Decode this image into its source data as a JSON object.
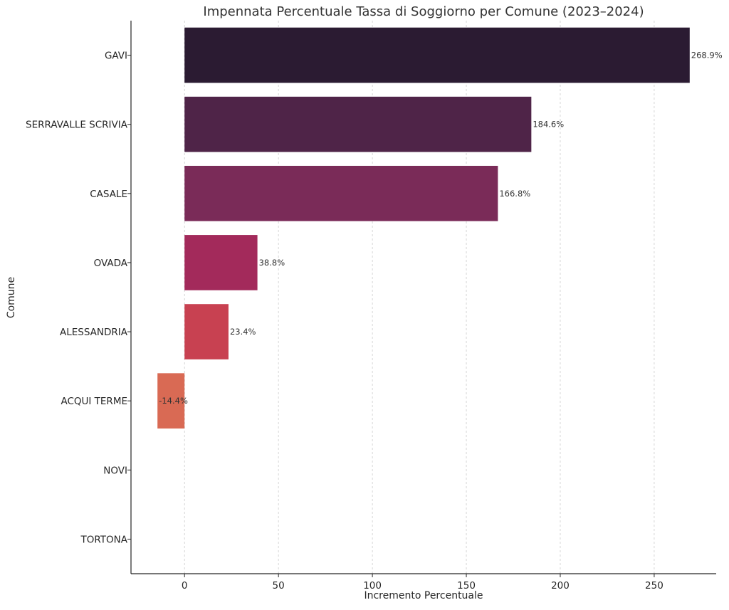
{
  "chart_data": {
    "type": "bar",
    "orientation": "horizontal",
    "title": "Impennata Percentuale Tassa di Soggiorno per Comune (2023–2024)",
    "xlabel": "Incremento Percentuale",
    "ylabel": "Comune",
    "categories": [
      "GAVI",
      "SERRAVALLE SCRIVIA",
      "CASALE",
      "OVADA",
      "ALESSANDRIA",
      "ACQUI TERME",
      "NOVI",
      "TORTONA"
    ],
    "values": [
      268.9,
      184.6,
      166.8,
      38.8,
      23.4,
      -14.4,
      null,
      null
    ],
    "data_labels": [
      "268.9%",
      "184.6%",
      "166.8%",
      "38.8%",
      "23.4%",
      "-14.4%",
      "",
      ""
    ],
    "colors": [
      "#2b1b32",
      "#4f2448",
      "#7a2b58",
      "#a32a5b",
      "#c84151",
      "#d96a54",
      "#e89a6e",
      "#f0c097"
    ],
    "xlim": [
      -28.5,
      283
    ],
    "xticks": [
      0,
      50,
      100,
      150,
      200,
      250
    ],
    "xtick_labels": [
      "0",
      "50",
      "100",
      "150",
      "200",
      "250"
    ],
    "grid": "x-dashed",
    "legend": "none"
  }
}
